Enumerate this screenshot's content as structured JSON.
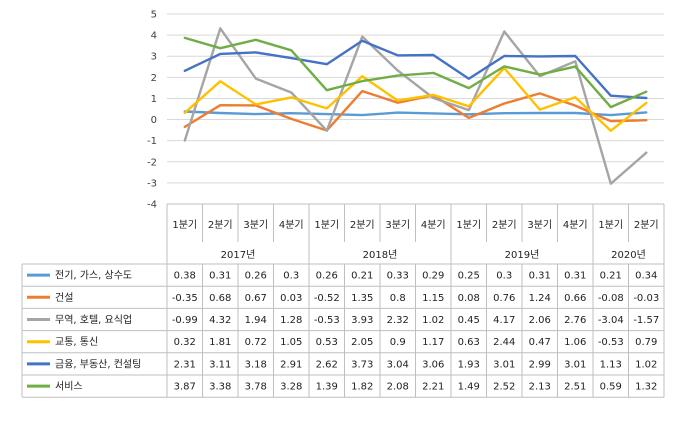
{
  "chart_data": {
    "type": "line",
    "ylim": [
      -4,
      5
    ],
    "yticks": [
      5,
      4,
      3,
      2,
      1,
      0,
      -1,
      -2,
      -3,
      -4
    ],
    "grid": true,
    "legend": "table-below",
    "quarters": [
      "1분기",
      "2분기",
      "3분기",
      "4분기",
      "1분기",
      "2분기",
      "3분기",
      "4분기",
      "1분기",
      "2분기",
      "3분기",
      "4분기",
      "1분기",
      "2분기"
    ],
    "years": [
      {
        "label": "2017년",
        "count": 4
      },
      {
        "label": "2018년",
        "count": 4
      },
      {
        "label": "2019년",
        "count": 4
      },
      {
        "label": "2020년",
        "count": 2
      }
    ],
    "series": [
      {
        "name": "전기, 가스, 상수도",
        "color": "#5B9BD5",
        "values": [
          "0.38",
          "0.31",
          "0.26",
          "0.3",
          "0.26",
          "0.21",
          "0.33",
          "0.29",
          "0.25",
          "0.3",
          "0.31",
          "0.31",
          "0.21",
          "0.34"
        ]
      },
      {
        "name": "건설",
        "color": "#ED7D31",
        "values": [
          "-0.35",
          "0.68",
          "0.67",
          "0.03",
          "-0.52",
          "1.35",
          "0.8",
          "1.15",
          "0.08",
          "0.76",
          "1.24",
          "0.66",
          "-0.08",
          "-0.03"
        ]
      },
      {
        "name": "무역, 호텔, 요식업",
        "color": "#A5A5A5",
        "values": [
          "-0.99",
          "4.32",
          "1.94",
          "1.28",
          "-0.53",
          "3.93",
          "2.32",
          "1.02",
          "0.45",
          "4.17",
          "2.06",
          "2.76",
          "-3.04",
          "-1.57"
        ]
      },
      {
        "name": "교통, 통신",
        "color": "#FFC000",
        "values": [
          "0.32",
          "1.81",
          "0.72",
          "1.05",
          "0.53",
          "2.05",
          "0.9",
          "1.17",
          "0.63",
          "2.44",
          "0.47",
          "1.06",
          "-0.53",
          "0.79"
        ]
      },
      {
        "name": "금융, 부동산, 컨설팅",
        "color": "#4472C4",
        "values": [
          "2.31",
          "3.11",
          "3.18",
          "2.91",
          "2.62",
          "3.73",
          "3.04",
          "3.06",
          "1.93",
          "3.01",
          "2.99",
          "3.01",
          "1.13",
          "1.02"
        ]
      },
      {
        "name": "서비스",
        "color": "#70AD47",
        "values": [
          "3.87",
          "3.38",
          "3.78",
          "3.28",
          "1.39",
          "1.82",
          "2.08",
          "2.21",
          "1.49",
          "2.52",
          "2.13",
          "2.51",
          "0.59",
          "1.32"
        ]
      }
    ]
  }
}
